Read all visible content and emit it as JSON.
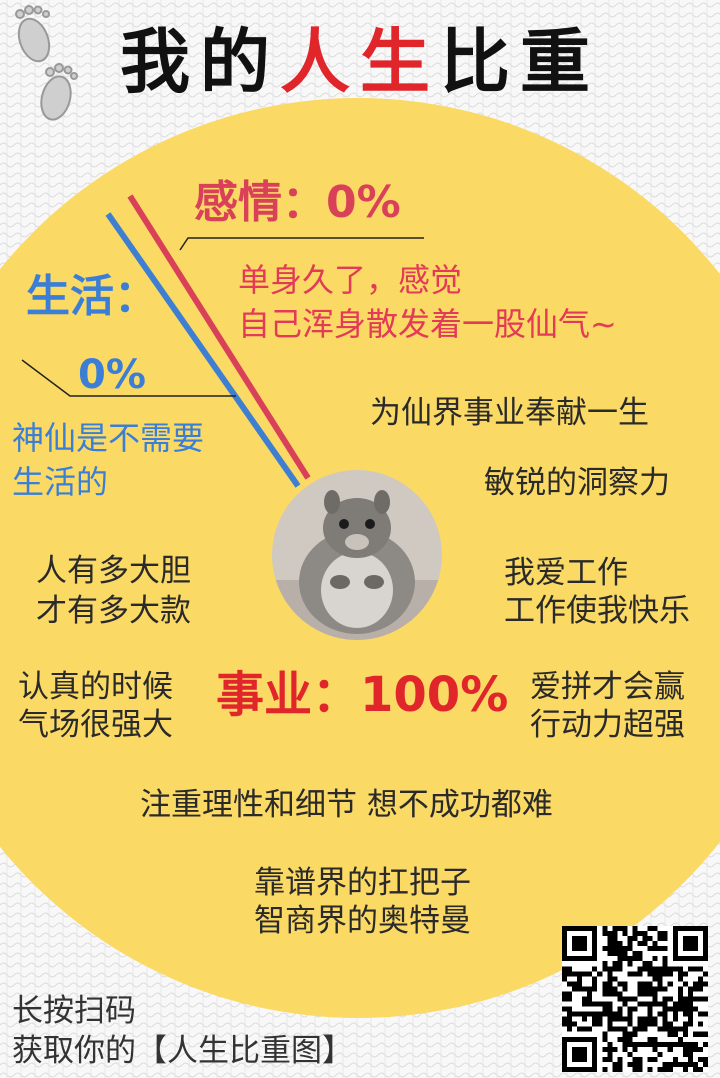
{
  "title": {
    "part1": "我的",
    "part2": "人生",
    "part3": "比重"
  },
  "colors": {
    "pie_yellow": "#fbd965",
    "emotion": "#d94159",
    "life": "#3f7fd2",
    "career": "#e0252b",
    "background": "#f7f7f7"
  },
  "chart_data": {
    "type": "pie",
    "title": "我的人生比重",
    "slices": [
      {
        "label": "感情",
        "value": 0,
        "display": "0%",
        "color": "#d94159"
      },
      {
        "label": "生活",
        "value": 0,
        "display": "0%",
        "color": "#3f7fd2"
      },
      {
        "label": "事业",
        "value": 100,
        "display": "100%",
        "color": "#fbd965"
      }
    ]
  },
  "emotion": {
    "label": "感情：0%",
    "caption_line1": "单身久了，感觉",
    "caption_line2": "自己浑身散发着一股仙气~"
  },
  "life": {
    "label": "生活：",
    "value": "0%",
    "caption_line1": "神仙是不需要",
    "caption_line2": "生活的"
  },
  "career": {
    "label": "事业：100%"
  },
  "phrases": {
    "p1": "为仙界事业奉献一生",
    "p2": "敏锐的洞察力",
    "p3a": "人有多大胆",
    "p3b": "才有多大款",
    "p4a": "我爱工作",
    "p4b": "工作使我快乐",
    "p5a": "认真的时候",
    "p5b": "气场很强大",
    "p6a": "爱拼才会赢",
    "p6b": "行动力超强",
    "p7": "注重理性和细节 想不成功都难",
    "p8a": "靠谱界的扛把子",
    "p8b": "智商界的奥特曼"
  },
  "footer": {
    "line1": "长按扫码",
    "line2": "获取你的【人生比重图】"
  },
  "icons": {
    "footprint": "footprints-icon",
    "qr": "qr-code",
    "photo": "squirrel-photo"
  }
}
